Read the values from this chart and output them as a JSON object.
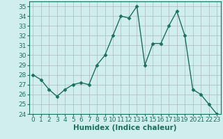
{
  "x": [
    0,
    1,
    2,
    3,
    4,
    5,
    6,
    7,
    8,
    9,
    10,
    11,
    12,
    13,
    14,
    15,
    16,
    17,
    18,
    19,
    20,
    21,
    22,
    23
  ],
  "y": [
    28,
    27.5,
    26.5,
    25.8,
    26.5,
    27,
    27.2,
    27,
    29,
    30,
    32,
    34,
    33.8,
    35,
    29,
    31.2,
    31.2,
    33,
    34.5,
    32,
    26.5,
    26,
    25,
    24
  ],
  "line_color": "#1a7060",
  "marker_color": "#1a7060",
  "bg_color": "#d0eeee",
  "grid_color": "#b0b8c0",
  "xlabel": "Humidex (Indice chaleur)",
  "ylim": [
    24,
    35.5
  ],
  "xlim": [
    -0.5,
    23.5
  ],
  "yticks": [
    24,
    25,
    26,
    27,
    28,
    29,
    30,
    31,
    32,
    33,
    34,
    35
  ],
  "xticks": [
    0,
    1,
    2,
    3,
    4,
    5,
    6,
    7,
    8,
    9,
    10,
    11,
    12,
    13,
    14,
    15,
    16,
    17,
    18,
    19,
    20,
    21,
    22,
    23
  ],
  "xlabel_fontsize": 7.5,
  "tick_fontsize": 6.5,
  "line_width": 1.0,
  "marker_size": 2.5
}
